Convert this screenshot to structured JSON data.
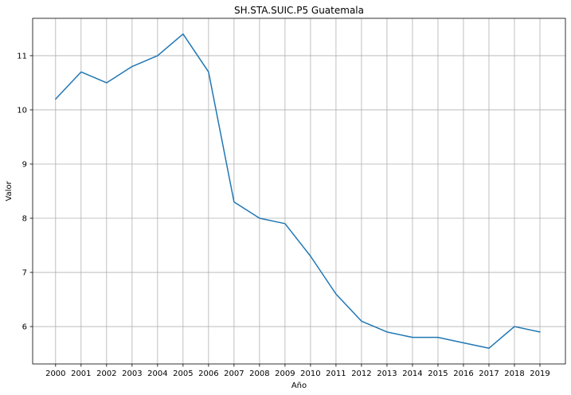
{
  "chart_data": {
    "type": "line",
    "title": "SH.STA.SUIC.P5 Guatemala",
    "xlabel": "Año",
    "ylabel": "Valor",
    "x": [
      2000,
      2001,
      2002,
      2003,
      2004,
      2005,
      2006,
      2007,
      2008,
      2009,
      2010,
      2011,
      2012,
      2013,
      2014,
      2015,
      2016,
      2017,
      2018,
      2019
    ],
    "series": [
      {
        "values": [
          10.2,
          10.7,
          10.5,
          10.8,
          11.0,
          11.4,
          10.7,
          8.3,
          8.0,
          7.9,
          7.3,
          6.6,
          6.1,
          5.9,
          5.8,
          5.8,
          5.7,
          5.6,
          6.0,
          5.9
        ],
        "color": "#1f77b4"
      }
    ],
    "xlim": [
      1999.1,
      2020.0
    ],
    "ylim": [
      5.31,
      11.69
    ],
    "yticks": [
      6,
      7,
      8,
      9,
      10,
      11
    ],
    "xticks": [
      "2000",
      "2001",
      "2002",
      "2003",
      "2004",
      "2005",
      "2006",
      "2007",
      "2008",
      "2009",
      "2010",
      "2011",
      "2012",
      "2013",
      "2014",
      "2015",
      "2016",
      "2017",
      "2018",
      "2019"
    ],
    "grid": true,
    "legend": "none"
  }
}
